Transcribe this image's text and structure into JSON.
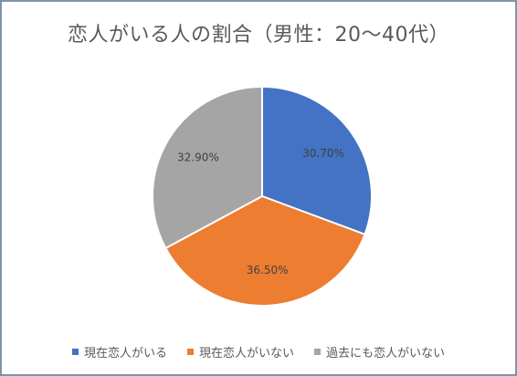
{
  "chart_data": {
    "type": "pie",
    "title": "恋人がいる人の割合（男性：20〜40代）",
    "categories": [
      "現在恋人がいる",
      "現在恋人がいない",
      "過去にも恋人がいない"
    ],
    "values": [
      30.7,
      36.5,
      32.9
    ],
    "data_labels": [
      "30.70%",
      "36.50%",
      "32.90%"
    ],
    "colors": [
      "#4472c4",
      "#ed7d31",
      "#a5a5a5"
    ],
    "legend_position": "bottom",
    "start_angle": "top, clockwise"
  }
}
